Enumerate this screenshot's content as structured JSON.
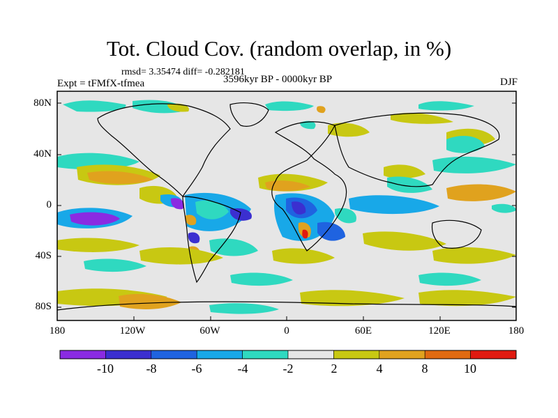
{
  "header": {
    "title": "Tot. Cloud Cov. (random overlap, in %)",
    "stats": "rmsd= 3.35474  diff= -0.282181",
    "experiment": "Expt = tFMfX-tfmea",
    "period": "3596kyr BP - 0000kyr BP",
    "season": "DJF"
  },
  "axes": {
    "lat_ticks": [
      "80N",
      "40N",
      "0",
      "40S",
      "80S"
    ],
    "lon_ticks": [
      "180",
      "120W",
      "60W",
      "0",
      "60E",
      "120E",
      "180"
    ]
  },
  "colorbar": {
    "labels": [
      "-10",
      "-8",
      "-6",
      "-4",
      "-2",
      "2",
      "4",
      "8",
      "10"
    ],
    "colors": [
      "#8a2be2",
      "#3b2fd0",
      "#1f63e0",
      "#18a8e8",
      "#2fd9c0",
      "#e6e6e6",
      "#c8c812",
      "#e0a21e",
      "#e06a10",
      "#e01a10"
    ]
  },
  "map": {
    "ocean_background": "#e6e6e6",
    "coast_color": "#000000"
  }
}
